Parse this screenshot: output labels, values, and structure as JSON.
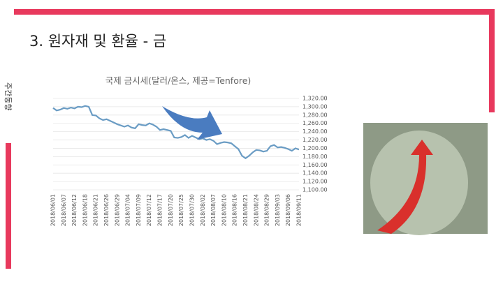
{
  "slide": {
    "title": "3. 원자재 및 환율 - 금",
    "side_label": "주간동향"
  },
  "chart_data": {
    "type": "line",
    "title": "국제 금시세(달러/온스, 제공=Tenfore)",
    "categories": [
      "2018/06/01",
      null,
      null,
      "2018/06/07",
      null,
      null,
      "2018/06/12",
      null,
      null,
      "2018/06/18",
      null,
      null,
      "2018/06/21",
      null,
      null,
      "2018/06/26",
      null,
      null,
      "2018/06/29",
      null,
      null,
      "2018/07/04",
      null,
      null,
      "2018/07/09",
      null,
      null,
      "2018/07/12",
      null,
      null,
      "2018/07/17",
      null,
      null,
      "2018/07/20",
      null,
      null,
      "2018/07/25",
      null,
      null,
      "2018/07/30",
      null,
      null,
      "2018/08/02",
      null,
      null,
      "2018/08/07",
      null,
      null,
      "2018/08/10",
      null,
      null,
      "2018/08/16",
      null,
      null,
      "2018/08/21",
      null,
      null,
      "2018/08/24",
      null,
      null,
      "2018/08/29",
      null,
      null,
      "2018/09/03",
      null,
      null,
      "2018/09/06",
      null,
      null,
      "2018/09/11"
    ],
    "series": [
      {
        "color": "#6a9cc4",
        "values": [
          1297,
          1291,
          1293,
          1297,
          1295,
          1298,
          1296,
          1300,
          1299,
          1302,
          1300,
          1280,
          1279,
          1272,
          1268,
          1270,
          1266,
          1262,
          1258,
          1255,
          1252,
          1255,
          1250,
          1248,
          1258,
          1256,
          1255,
          1260,
          1257,
          1252,
          1244,
          1246,
          1244,
          1242,
          1226,
          1225,
          1227,
          1232,
          1225,
          1230,
          1226,
          1222,
          1224,
          1220,
          1222,
          1218,
          1210,
          1213,
          1215,
          1214,
          1212,
          1205,
          1198,
          1182,
          1176,
          1182,
          1190,
          1196,
          1195,
          1192,
          1194,
          1205,
          1208,
          1202,
          1203,
          1201,
          1198,
          1194,
          1200,
          1197
        ]
      }
    ],
    "ylim": [
      1100,
      1320
    ],
    "yticks": [
      {
        "value": 1100,
        "label": "1,100.00"
      },
      {
        "value": 1120,
        "label": "1,120.00"
      },
      {
        "value": 1140,
        "label": "1,140.00"
      },
      {
        "value": 1160,
        "label": "1,160.00"
      },
      {
        "value": 1180,
        "label": "1,180.00"
      },
      {
        "value": 1200,
        "label": "1,200.00"
      },
      {
        "value": 1220,
        "label": "1,220.00"
      },
      {
        "value": 1240,
        "label": "1,240.00"
      },
      {
        "value": 1260,
        "label": "1,260.00"
      },
      {
        "value": 1280,
        "label": "1,280.00"
      },
      {
        "value": 1300,
        "label": "1,300.00"
      },
      {
        "value": 1320,
        "label": "1,320.00"
      }
    ],
    "grid": true
  }
}
